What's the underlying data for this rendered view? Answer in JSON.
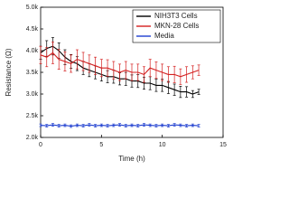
{
  "chart_data": {
    "type": "line",
    "xlabel": "Time (h)",
    "ylabel": "Resistance (Ω)",
    "x": [
      0,
      0.5,
      1,
      1.5,
      2,
      2.5,
      3,
      3.5,
      4,
      4.5,
      5,
      5.5,
      6,
      6.5,
      7,
      7.5,
      8,
      8.5,
      9,
      9.5,
      10,
      10.5,
      11,
      11.5,
      12,
      12.5,
      13
    ],
    "series": [
      {
        "name": "NIH3T3 Cells",
        "color": "#000000",
        "values": [
          3950,
          4050,
          4100,
          4000,
          3850,
          3750,
          3700,
          3600,
          3550,
          3500,
          3450,
          3400,
          3400,
          3350,
          3350,
          3300,
          3300,
          3250,
          3250,
          3200,
          3200,
          3150,
          3100,
          3050,
          3050,
          3000,
          3050
        ],
        "errors": [
          150,
          180,
          200,
          180,
          170,
          160,
          160,
          150,
          150,
          150,
          150,
          140,
          150,
          140,
          150,
          140,
          150,
          140,
          150,
          140,
          140,
          140,
          130,
          130,
          120,
          80,
          60
        ]
      },
      {
        "name": "MKN-28 Cells",
        "color": "#d42020",
        "values": [
          3900,
          3850,
          3950,
          3800,
          3750,
          3700,
          3800,
          3750,
          3700,
          3650,
          3600,
          3600,
          3550,
          3500,
          3550,
          3500,
          3500,
          3450,
          3600,
          3550,
          3500,
          3450,
          3450,
          3400,
          3450,
          3500,
          3550
        ],
        "errors": [
          200,
          220,
          250,
          230,
          220,
          200,
          220,
          210,
          200,
          200,
          200,
          190,
          200,
          190,
          200,
          190,
          190,
          180,
          200,
          190,
          190,
          180,
          190,
          180,
          180,
          150,
          120
        ]
      },
      {
        "name": "Media",
        "color": "#1f3fd0",
        "values": [
          2280,
          2270,
          2290,
          2270,
          2280,
          2260,
          2280,
          2270,
          2290,
          2270,
          2280,
          2270,
          2280,
          2290,
          2270,
          2280,
          2270,
          2290,
          2280,
          2270,
          2280,
          2270,
          2290,
          2280,
          2270,
          2280,
          2270
        ],
        "errors": [
          30,
          30,
          30,
          30,
          30,
          30,
          30,
          30,
          30,
          30,
          30,
          30,
          30,
          30,
          30,
          30,
          30,
          30,
          30,
          30,
          30,
          30,
          30,
          30,
          30,
          30,
          30
        ]
      }
    ],
    "xlim": [
      0,
      15
    ],
    "xticks": [
      0,
      5,
      10,
      15
    ],
    "ylim": [
      2000,
      5000
    ],
    "yticks": [
      {
        "value": 2000,
        "label": "2.0k"
      },
      {
        "value": 2500,
        "label": "2.5k"
      },
      {
        "value": 3000,
        "label": "3.0k"
      },
      {
        "value": 3500,
        "label": "3.5k"
      },
      {
        "value": 4000,
        "label": "4.0k"
      },
      {
        "value": 4500,
        "label": "4.5k"
      },
      {
        "value": 5000,
        "label": "5.0k"
      }
    ],
    "legend": "upper-right"
  }
}
